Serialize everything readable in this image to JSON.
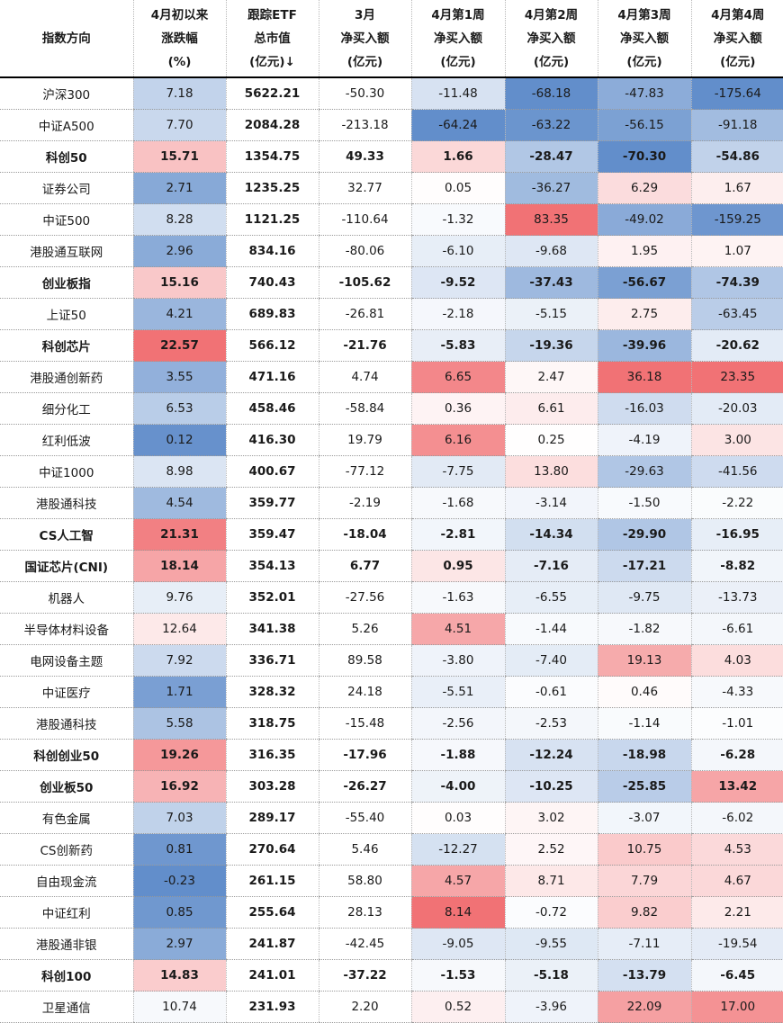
{
  "header": [
    [
      "指数方向"
    ],
    [
      "4月初以来",
      "涨跌幅",
      "(%)"
    ],
    [
      "跟踪ETF",
      "总市值",
      "(亿元)↓"
    ],
    [
      "3月",
      "净买入额",
      "(亿元)"
    ],
    [
      "4月第1周",
      "净买入额",
      "(亿元)"
    ],
    [
      "4月第2周",
      "净买入额",
      "(亿元)"
    ],
    [
      "4月第3周",
      "净买入额",
      "(亿元)"
    ],
    [
      "4月第4周",
      "净买入额",
      "(亿元)"
    ]
  ],
  "rows": [
    {
      "name": "沪深300",
      "bold": false,
      "values": [
        "7.18",
        "5622.21",
        "-50.30",
        "-11.48",
        "-68.18",
        "-47.83",
        "-175.64"
      ]
    },
    {
      "name": "中证A500",
      "bold": false,
      "values": [
        "7.70",
        "2084.28",
        "-213.18",
        "-64.24",
        "-63.22",
        "-56.15",
        "-91.18"
      ]
    },
    {
      "name": "科创50",
      "bold": true,
      "values": [
        "15.71",
        "1354.75",
        "49.33",
        "1.66",
        "-28.47",
        "-70.30",
        "-54.86"
      ]
    },
    {
      "name": "证券公司",
      "bold": false,
      "values": [
        "2.71",
        "1235.25",
        "32.77",
        "0.05",
        "-36.27",
        "6.29",
        "1.67"
      ]
    },
    {
      "name": "中证500",
      "bold": false,
      "values": [
        "8.28",
        "1121.25",
        "-110.64",
        "-1.32",
        "83.35",
        "-49.02",
        "-159.25"
      ]
    },
    {
      "name": "港股通互联网",
      "bold": false,
      "values": [
        "2.96",
        "834.16",
        "-80.06",
        "-6.10",
        "-9.68",
        "1.95",
        "1.07"
      ]
    },
    {
      "name": "创业板指",
      "bold": true,
      "values": [
        "15.16",
        "740.43",
        "-105.62",
        "-9.52",
        "-37.43",
        "-56.67",
        "-74.39"
      ]
    },
    {
      "name": "上证50",
      "bold": false,
      "values": [
        "4.21",
        "689.83",
        "-26.81",
        "-2.18",
        "-5.15",
        "2.75",
        "-63.45"
      ]
    },
    {
      "name": "科创芯片",
      "bold": true,
      "values": [
        "22.57",
        "566.12",
        "-21.76",
        "-5.83",
        "-19.36",
        "-39.96",
        "-20.62"
      ]
    },
    {
      "name": "港股通创新药",
      "bold": false,
      "values": [
        "3.55",
        "471.16",
        "4.74",
        "6.65",
        "2.47",
        "36.18",
        "23.35"
      ]
    },
    {
      "name": "细分化工",
      "bold": false,
      "values": [
        "6.53",
        "458.46",
        "-58.84",
        "0.36",
        "6.61",
        "-16.03",
        "-20.03"
      ]
    },
    {
      "name": "红利低波",
      "bold": false,
      "values": [
        "0.12",
        "416.30",
        "19.79",
        "6.16",
        "0.25",
        "-4.19",
        "3.00"
      ]
    },
    {
      "name": "中证1000",
      "bold": false,
      "values": [
        "8.98",
        "400.67",
        "-77.12",
        "-7.75",
        "13.80",
        "-29.63",
        "-41.56"
      ]
    },
    {
      "name": "港股通科技",
      "bold": false,
      "values": [
        "4.54",
        "359.77",
        "-2.19",
        "-1.68",
        "-3.14",
        "-1.50",
        "-2.22"
      ]
    },
    {
      "name": "CS人工智",
      "bold": true,
      "values": [
        "21.31",
        "359.47",
        "-18.04",
        "-2.81",
        "-14.34",
        "-29.90",
        "-16.95"
      ]
    },
    {
      "name": "国证芯片(CNI)",
      "bold": true,
      "values": [
        "18.14",
        "354.13",
        "6.77",
        "0.95",
        "-7.16",
        "-17.21",
        "-8.82"
      ]
    },
    {
      "name": "机器人",
      "bold": false,
      "values": [
        "9.76",
        "352.01",
        "-27.56",
        "-1.63",
        "-6.55",
        "-9.75",
        "-13.73"
      ]
    },
    {
      "name": "半导体材料设备",
      "bold": false,
      "values": [
        "12.64",
        "341.38",
        "5.26",
        "4.51",
        "-1.44",
        "-1.82",
        "-6.61"
      ]
    },
    {
      "name": "电网设备主题",
      "bold": false,
      "values": [
        "7.92",
        "336.71",
        "89.58",
        "-3.80",
        "-7.40",
        "19.13",
        "4.03"
      ]
    },
    {
      "name": "中证医疗",
      "bold": false,
      "values": [
        "1.71",
        "328.32",
        "24.18",
        "-5.51",
        "-0.61",
        "0.46",
        "-4.33"
      ]
    },
    {
      "name": "港股通科技",
      "bold": false,
      "values": [
        "5.58",
        "318.75",
        "-15.48",
        "-2.56",
        "-2.53",
        "-1.14",
        "-1.01"
      ]
    },
    {
      "name": "科创创业50",
      "bold": true,
      "values": [
        "19.26",
        "316.35",
        "-17.96",
        "-1.88",
        "-12.24",
        "-18.98",
        "-6.28"
      ]
    },
    {
      "name": "创业板50",
      "bold": true,
      "values": [
        "16.92",
        "303.28",
        "-26.27",
        "-4.00",
        "-10.25",
        "-25.85",
        "13.42"
      ]
    },
    {
      "name": "有色金属",
      "bold": false,
      "values": [
        "7.03",
        "289.17",
        "-55.40",
        "0.03",
        "3.02",
        "-3.07",
        "-6.02"
      ]
    },
    {
      "name": "CS创新药",
      "bold": false,
      "values": [
        "0.81",
        "270.64",
        "5.46",
        "-12.27",
        "2.52",
        "10.75",
        "4.53"
      ]
    },
    {
      "name": "自由现金流",
      "bold": false,
      "values": [
        "-0.23",
        "261.15",
        "58.80",
        "4.57",
        "8.71",
        "7.79",
        "4.67"
      ]
    },
    {
      "name": "中证红利",
      "bold": false,
      "values": [
        "0.85",
        "255.64",
        "28.13",
        "8.14",
        "-0.72",
        "9.82",
        "2.21"
      ]
    },
    {
      "name": "港股通非银",
      "bold": false,
      "values": [
        "2.97",
        "241.87",
        "-42.45",
        "-9.05",
        "-9.55",
        "-7.11",
        "-19.54"
      ]
    },
    {
      "name": "科创100",
      "bold": true,
      "values": [
        "14.83",
        "241.01",
        "-37.22",
        "-1.53",
        "-5.18",
        "-13.79",
        "-6.45"
      ]
    },
    {
      "name": "卫星通信",
      "bold": false,
      "values": [
        "10.74",
        "231.93",
        "2.20",
        "0.52",
        "-3.96",
        "22.09",
        "17.00"
      ]
    }
  ],
  "colors": {
    "positive": "#f06b6e",
    "negative": "#5a88c8",
    "neutral": "#ffffff"
  }
}
